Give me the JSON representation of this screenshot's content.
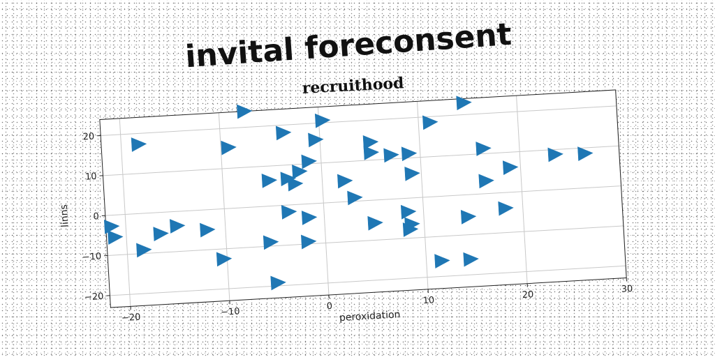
{
  "chart_data": {
    "type": "scatter",
    "title": "invital foreconsent",
    "subtitle": "recruithood",
    "xlabel": "peroxidation",
    "ylabel": "linns",
    "xlim": [
      -22,
      30
    ],
    "ylim": [
      -23,
      24
    ],
    "xticks": [
      -20,
      -10,
      0,
      10,
      20,
      30
    ],
    "yticks": [
      -20,
      -10,
      0,
      10,
      20
    ],
    "grid": true,
    "marker": "triangle-right",
    "color": "#1f77b4",
    "points": [
      {
        "x": -7.5,
        "y": 24.0
      },
      {
        "x": 14.6,
        "y": 23.0
      },
      {
        "x": 0.3,
        "y": 20.6
      },
      {
        "x": -18.3,
        "y": 17.3
      },
      {
        "x": -3.7,
        "y": 18.1
      },
      {
        "x": 11.1,
        "y": 18.6
      },
      {
        "x": -9.3,
        "y": 15.2
      },
      {
        "x": -0.5,
        "y": 15.9
      },
      {
        "x": 5.0,
        "y": 14.5
      },
      {
        "x": 5.0,
        "y": 11.9
      },
      {
        "x": 7.0,
        "y": 11.0
      },
      {
        "x": 8.8,
        "y": 11.1
      },
      {
        "x": -1.3,
        "y": 10.6
      },
      {
        "x": 16.3,
        "y": 11.3
      },
      {
        "x": 23.5,
        "y": 8.8
      },
      {
        "x": 26.5,
        "y": 8.6
      },
      {
        "x": -2.3,
        "y": 8.2
      },
      {
        "x": -5.4,
        "y": 6.4
      },
      {
        "x": -3.5,
        "y": 6.6
      },
      {
        "x": -2.8,
        "y": 5.2
      },
      {
        "x": 2.2,
        "y": 5.2
      },
      {
        "x": 9.0,
        "y": 6.1
      },
      {
        "x": 18.9,
        "y": 6.2
      },
      {
        "x": 16.4,
        "y": 3.2
      },
      {
        "x": 3.1,
        "y": 0.9
      },
      {
        "x": -21.5,
        "y": -2.8
      },
      {
        "x": -21.2,
        "y": -5.5
      },
      {
        "x": -16.6,
        "y": -5.3
      },
      {
        "x": -14.9,
        "y": -3.6
      },
      {
        "x": -11.9,
        "y": -5.0
      },
      {
        "x": -3.6,
        "y": -1.7
      },
      {
        "x": -1.6,
        "y": -3.4
      },
      {
        "x": 8.4,
        "y": -3.4
      },
      {
        "x": 5.0,
        "y": -5.7
      },
      {
        "x": 8.7,
        "y": -6.5
      },
      {
        "x": 8.5,
        "y": -7.8
      },
      {
        "x": 14.4,
        "y": -5.5
      },
      {
        "x": 18.2,
        "y": -3.9
      },
      {
        "x": -18.4,
        "y": -9.1
      },
      {
        "x": -5.6,
        "y": -9.0
      },
      {
        "x": -1.8,
        "y": -9.4
      },
      {
        "x": -10.4,
        "y": -12.5
      },
      {
        "x": 11.5,
        "y": -16.1
      },
      {
        "x": 14.4,
        "y": -16.1
      },
      {
        "x": -5.1,
        "y": -19.2
      }
    ]
  }
}
